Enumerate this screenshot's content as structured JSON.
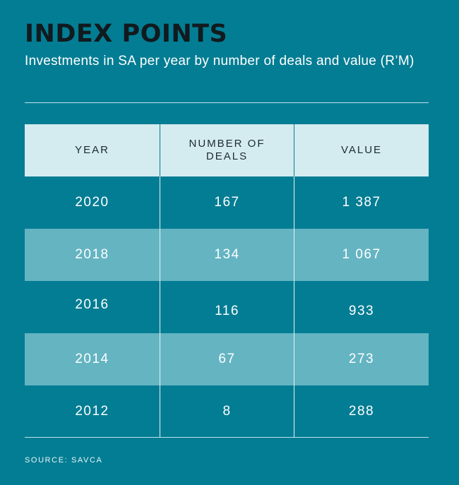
{
  "title": "INDEX POINTS",
  "subtitle": "Investments in SA per year by number of deals and value (R’M)",
  "chart_data": {
    "type": "table",
    "columns": [
      "YEAR",
      "NUMBER OF DEALS",
      "VALUE"
    ],
    "rows": [
      {
        "year": "2020",
        "deals": "167",
        "value": "1 387"
      },
      {
        "year": "2018",
        "deals": "134",
        "value": "1 067"
      },
      {
        "year": "2016",
        "deals": "116",
        "value": "933"
      },
      {
        "year": "2014",
        "deals": "67",
        "value": "273"
      },
      {
        "year": "2012",
        "deals": "8",
        "value": "288"
      }
    ]
  },
  "source": "SOURCE: SAVCA",
  "colors": {
    "background": "#037d93",
    "header_row": "#d4ebf0",
    "shaded_row": "#64b4c2",
    "title": "#111a1e"
  }
}
